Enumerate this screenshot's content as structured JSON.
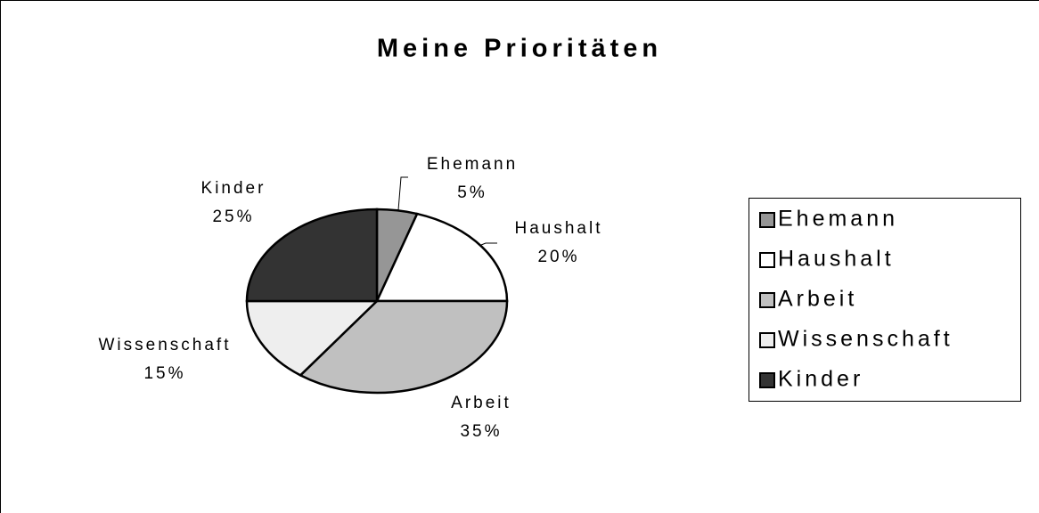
{
  "chart_data": {
    "type": "pie",
    "title": "Meine Prioritäten",
    "categories": [
      "Ehemann",
      "Haushalt",
      "Arbeit",
      "Wissenschaft",
      "Kinder"
    ],
    "values": [
      5,
      20,
      35,
      15,
      25
    ],
    "value_labels": [
      "5%",
      "20%",
      "35%",
      "15%",
      "25%"
    ],
    "colors": [
      "#969696",
      "#ffffff",
      "#c0c0c0",
      "#eeeeee",
      "#333333"
    ],
    "legend": "right"
  }
}
